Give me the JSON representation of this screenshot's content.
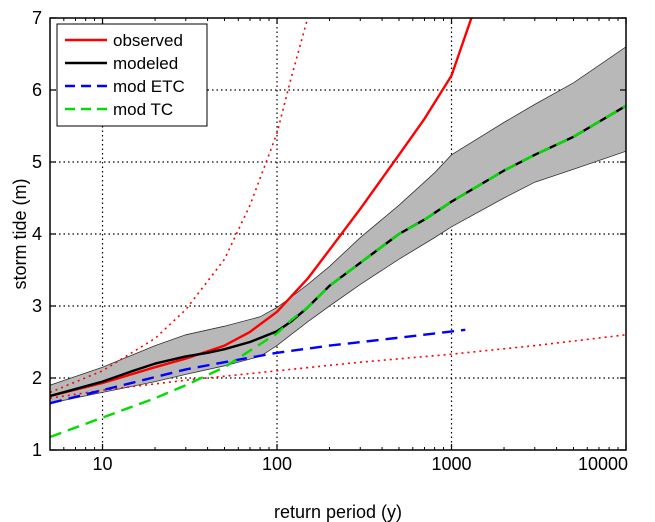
{
  "chart_data": {
    "type": "line",
    "xlabel": "return period (y)",
    "ylabel": "storm tide (m)",
    "xscale": "log",
    "xlim": [
      5,
      10000
    ],
    "ylim": [
      1,
      7
    ],
    "grid": true,
    "legend_position": "top-left",
    "x_ticks": [
      10,
      100,
      1000,
      10000
    ],
    "x_tick_labels": [
      "10",
      "100",
      "1000",
      "10000"
    ],
    "y_ticks": [
      1,
      2,
      3,
      4,
      5,
      6,
      7
    ],
    "y_tick_labels": [
      "1",
      "2",
      "3",
      "4",
      "5",
      "6",
      "7"
    ],
    "band": {
      "color": "#b8b8b8",
      "x": [
        5,
        10,
        20,
        30,
        50,
        80,
        100,
        120,
        150,
        200,
        300,
        500,
        800,
        1000,
        2000,
        3000,
        5000,
        10000
      ],
      "lower": [
        1.65,
        1.8,
        1.95,
        2.05,
        2.17,
        2.3,
        2.45,
        2.6,
        2.78,
        3.0,
        3.3,
        3.65,
        3.95,
        4.1,
        4.5,
        4.72,
        4.9,
        5.15
      ],
      "upper": [
        1.9,
        2.15,
        2.45,
        2.6,
        2.72,
        2.85,
        2.98,
        3.12,
        3.3,
        3.55,
        3.95,
        4.4,
        4.85,
        5.1,
        5.55,
        5.8,
        6.1,
        6.6
      ]
    },
    "series": [
      {
        "name": "observed",
        "color": "#ff0000",
        "dash": "solid",
        "x": [
          5,
          10,
          20,
          30,
          50,
          70,
          100,
          150,
          200,
          300,
          500,
          700,
          1000,
          1300
        ],
        "y": [
          1.75,
          1.93,
          2.15,
          2.27,
          2.45,
          2.64,
          2.92,
          3.38,
          3.78,
          4.35,
          5.1,
          5.6,
          6.2,
          7.0
        ]
      },
      {
        "name": "modeled",
        "color": "#000000",
        "dash": "solid",
        "x": [
          5,
          10,
          15,
          20,
          30,
          40,
          50,
          70,
          100,
          120,
          150,
          200,
          300,
          500,
          700,
          1000,
          2000,
          3000,
          5000,
          10000
        ],
        "y": [
          1.75,
          1.95,
          2.1,
          2.2,
          2.3,
          2.35,
          2.4,
          2.5,
          2.65,
          2.78,
          2.98,
          3.28,
          3.6,
          4.0,
          4.2,
          4.45,
          4.88,
          5.1,
          5.35,
          5.78
        ]
      },
      {
        "name": "mod ETC",
        "color": "#0000ff",
        "dash": "dashed",
        "x": [
          5,
          10,
          30,
          50,
          100,
          200,
          500,
          1200
        ],
        "y": [
          1.65,
          1.83,
          2.12,
          2.22,
          2.35,
          2.45,
          2.56,
          2.67
        ]
      },
      {
        "name": "mod TC",
        "color": "#00dd00",
        "dash": "dashed",
        "x": [
          5,
          10,
          20,
          30,
          50,
          70,
          100,
          120,
          150,
          200,
          300,
          500,
          700,
          1000,
          2000,
          3000,
          5000,
          10000
        ],
        "y": [
          1.18,
          1.45,
          1.72,
          1.9,
          2.15,
          2.38,
          2.62,
          2.8,
          2.98,
          3.28,
          3.6,
          4.0,
          4.2,
          4.45,
          4.88,
          5.1,
          5.35,
          5.78
        ]
      },
      {
        "color": "#ff0000",
        "dash": "dotted",
        "x": [
          5,
          10,
          20,
          30,
          50,
          70,
          100,
          120,
          150
        ],
        "y": [
          1.8,
          2.1,
          2.55,
          2.95,
          3.65,
          4.4,
          5.4,
          6.15,
          7.0
        ]
      },
      {
        "color": "#ff0000",
        "dash": "dotted",
        "x": [
          5,
          10,
          30,
          100,
          300,
          1000,
          3000,
          10000
        ],
        "y": [
          1.72,
          1.83,
          1.97,
          2.1,
          2.22,
          2.33,
          2.45,
          2.6
        ]
      }
    ]
  }
}
